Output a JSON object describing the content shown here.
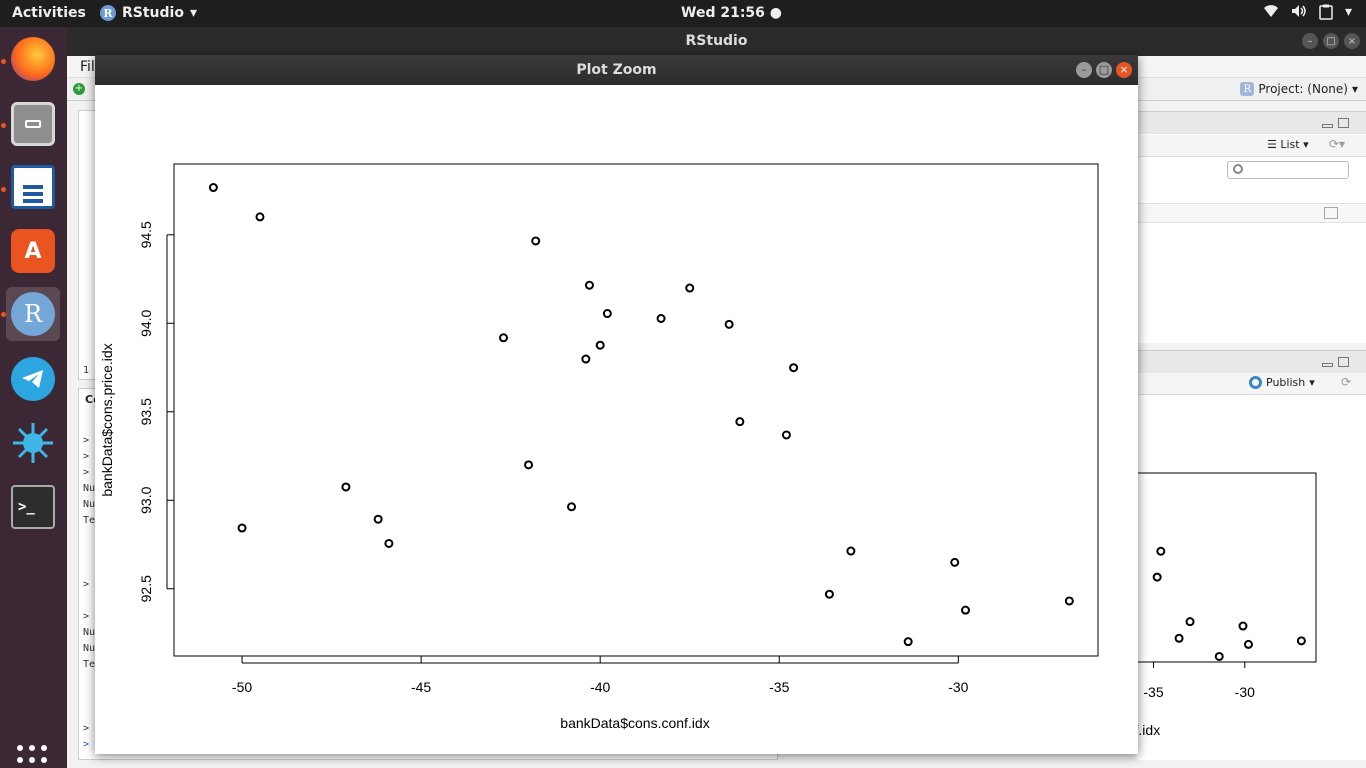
{
  "topbar": {
    "activities": "Activities",
    "app_name": "RStudio",
    "app_badge": "R",
    "clock": "Wed 21:56 ●"
  },
  "dock": {
    "items": [
      "firefox-icon",
      "files-icon",
      "writer-icon",
      "software-center-icon",
      "rstudio-icon",
      "telegram-icon",
      "settings-icon",
      "terminal-icon"
    ],
    "rstudio_badge": "R",
    "terminal_label": ">_",
    "store_label": "A"
  },
  "rstudio": {
    "window_title": "RStudio",
    "menu_file": "File",
    "project_label": "Project: (None)",
    "project_badge": "R",
    "list_label": "List",
    "publish_label": "Publish",
    "console_tab": "Co",
    "source_line": "1",
    "console_lines": [
      ">",
      ">",
      ">",
      "Nu",
      "Nu",
      "Te",
      ">",
      ">",
      "Nu",
      "Nu",
      "Te",
      ">",
      ">"
    ]
  },
  "plot_zoom": {
    "title": "Plot Zoom"
  },
  "chart_data": {
    "type": "scatter",
    "xlabel": "bankData$cons.conf.idx",
    "ylabel": "bankData$cons.price.idx",
    "xlim": [
      -51.9,
      -26.1
    ],
    "ylim": [
      92.12,
      94.9
    ],
    "xticks": [
      -50,
      -45,
      -40,
      -35,
      -30
    ],
    "yticks": [
      92.5,
      93.0,
      93.5,
      94.0,
      94.5
    ],
    "xtick_labels": [
      "-50",
      "-45",
      "-40",
      "-35",
      "-30"
    ],
    "ytick_labels": [
      "92.5",
      "93.0",
      "93.5",
      "94.0",
      "94.5"
    ],
    "x": [
      -50.8,
      -49.5,
      -50.0,
      -47.1,
      -46.2,
      -45.9,
      -42.7,
      -42.0,
      -41.8,
      -40.8,
      -40.4,
      -40.3,
      -40.0,
      -39.8,
      -38.3,
      -37.5,
      -36.4,
      -36.1,
      -34.8,
      -34.6,
      -33.6,
      -33.0,
      -31.4,
      -30.1,
      -29.8,
      -26.9
    ],
    "y": [
      94.767,
      94.601,
      92.843,
      93.075,
      92.893,
      92.756,
      93.918,
      93.2,
      94.465,
      92.963,
      93.798,
      94.215,
      93.876,
      94.055,
      94.027,
      94.199,
      93.994,
      93.444,
      93.369,
      93.749,
      92.469,
      92.713,
      92.201,
      92.649,
      92.379,
      92.431
    ]
  }
}
